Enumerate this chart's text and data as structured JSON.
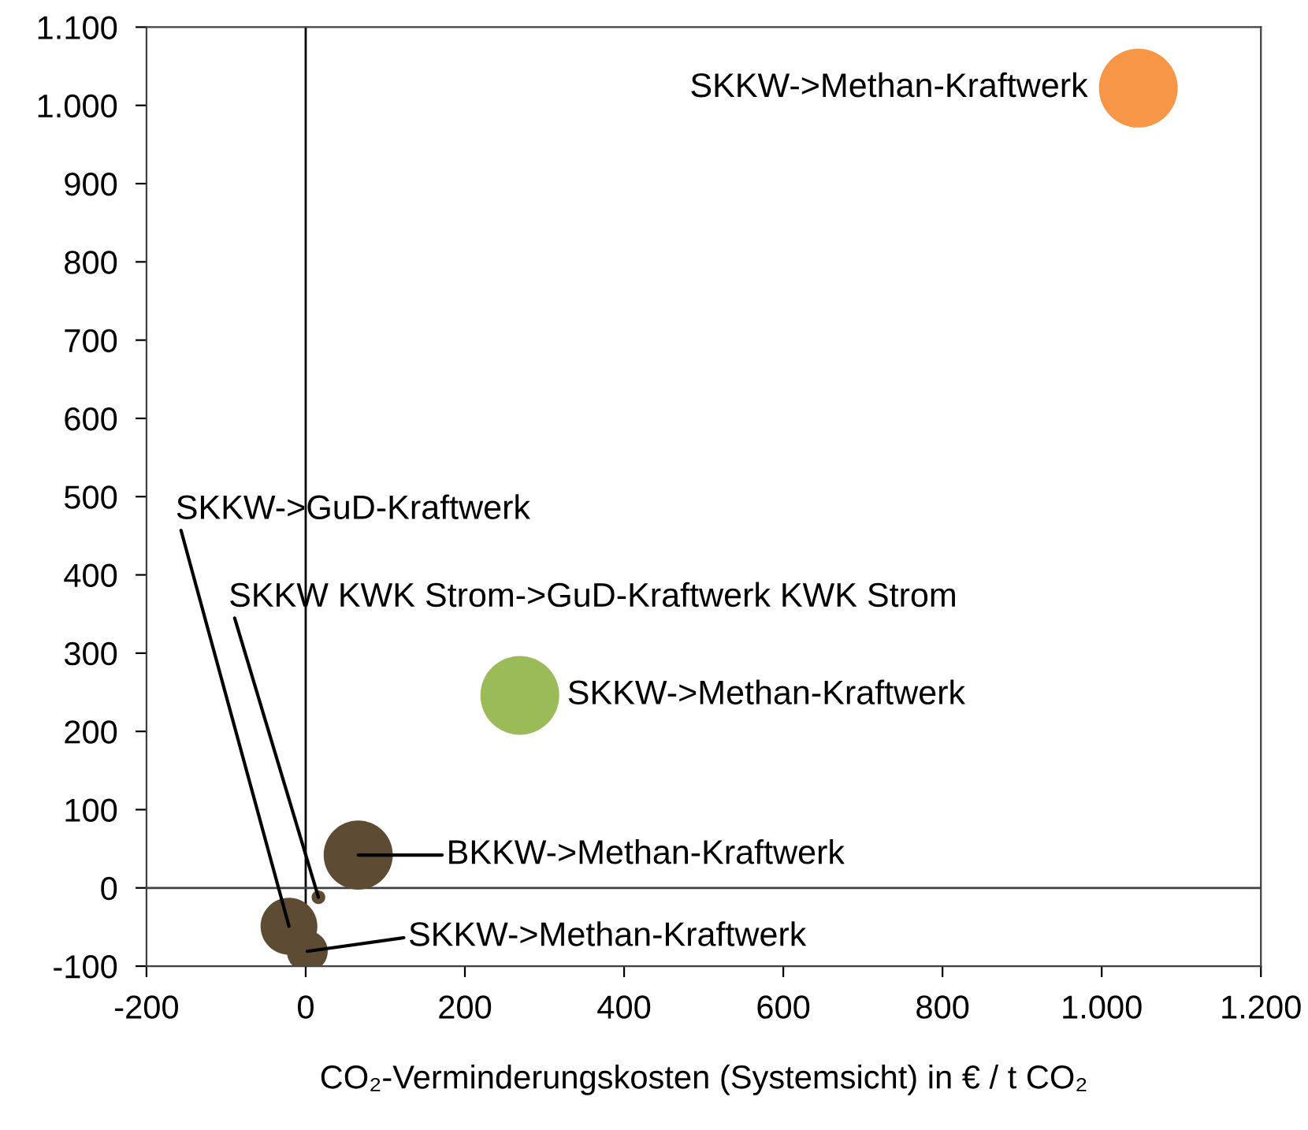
{
  "chart_data": {
    "type": "bubble",
    "xlabel": "CO₂-Verminderungskosten (Systemsicht) in € / t CO₂",
    "x": [
      1046,
      269,
      66,
      -21,
      16,
      2
    ],
    "values": [
      1022,
      246,
      42,
      -49,
      -12,
      -81
    ],
    "sizes": [
      1,
      1,
      0.77,
      0.52,
      0.03,
      0.27
    ],
    "colors": [
      "#f79646",
      "#9bbb59",
      "#5e4b33",
      "#5e4b33",
      "#5e4b33",
      "#5e4b33"
    ],
    "xlim": [
      -200,
      1200
    ],
    "xticks": [
      -200,
      0,
      200,
      400,
      600,
      800,
      {
        "value": 1000,
        "label": "1.000"
      },
      {
        "value": 1200,
        "label": "1.200"
      }
    ],
    "ylim": [
      -100,
      1100
    ],
    "yticks": [
      -100,
      0,
      100,
      200,
      300,
      400,
      500,
      600,
      700,
      800,
      900,
      {
        "value": 1000,
        "label": "1.000"
      },
      {
        "value": 1100,
        "label": "1.100"
      }
    ],
    "ref_lines": [
      {
        "axis": "x",
        "value": 0,
        "color": "#000000"
      },
      {
        "axis": "y",
        "value": 0,
        "color": "#404040"
      }
    ],
    "grid": false,
    "annotations": [
      {
        "text": "SKKW->Methan-Kraftwerk",
        "x": 1046,
        "y": 1022
      },
      {
        "text": "SKKW->Methan-Kraftwerk",
        "x": 269,
        "y": 246
      },
      {
        "text": "BKKW->Methan-Kraftwerk",
        "x": 66,
        "y": 42
      },
      {
        "text": "SKKW->GuD-Kraftwerk",
        "x": -21,
        "y": -49
      },
      {
        "text": "SKKW KWK Strom->GuD-Kraftwerk KWK Strom",
        "x": 16,
        "y": -12
      },
      {
        "text": "SKKW->Methan-Kraftwerk",
        "x": 2,
        "y": -81
      }
    ]
  }
}
